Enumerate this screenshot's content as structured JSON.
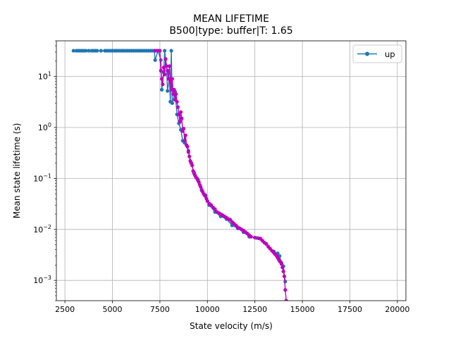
{
  "chart_data": {
    "type": "line",
    "title": "MEAN LIFETIME",
    "subtitle": "B500|type: buffer|T: 1.65",
    "xlabel": "State velocity (m/s)",
    "ylabel": "Mean state lifetime (s)",
    "xscale": "linear",
    "yscale": "log",
    "xlim": [
      2050,
      20450
    ],
    "ylim": [
      0.0004,
      50
    ],
    "xticks": [
      2500,
      5000,
      7500,
      10000,
      12500,
      15000,
      17500,
      20000
    ],
    "xtick_labels": [
      "2500",
      "5000",
      "7500",
      "10000",
      "12500",
      "15000",
      "17500",
      "20000"
    ],
    "yticks": [
      0.001,
      0.01,
      0.1,
      1,
      10
    ],
    "ytick_labels": [
      {
        "base": "10",
        "exp": "−3"
      },
      {
        "base": "10",
        "exp": "−2"
      },
      {
        "base": "10",
        "exp": "−1"
      },
      {
        "base": "10",
        "exp": "0"
      },
      {
        "base": "10",
        "exp": "1"
      }
    ],
    "grid": true,
    "legend": {
      "position": "top-right",
      "entries": [
        "up"
      ]
    },
    "series": [
      {
        "name": "up",
        "color": "#1f77b4",
        "points": [
          [
            2950,
            32
          ],
          [
            3100,
            32
          ],
          [
            3200,
            32
          ],
          [
            3300,
            32
          ],
          [
            3400,
            32
          ],
          [
            3500,
            32
          ],
          [
            3600,
            32
          ],
          [
            3750,
            32
          ],
          [
            3900,
            32
          ],
          [
            4000,
            32
          ],
          [
            4100,
            32
          ],
          [
            4200,
            32
          ],
          [
            4400,
            32
          ],
          [
            4600,
            32
          ],
          [
            4700,
            32
          ],
          [
            4800,
            32
          ],
          [
            4900,
            32
          ],
          [
            5000,
            32
          ],
          [
            5100,
            32
          ],
          [
            5200,
            32
          ],
          [
            5300,
            32
          ],
          [
            5400,
            32
          ],
          [
            5500,
            32
          ],
          [
            5600,
            32
          ],
          [
            5700,
            32
          ],
          [
            5800,
            32
          ],
          [
            5900,
            32
          ],
          [
            6000,
            32
          ],
          [
            6100,
            32
          ],
          [
            6200,
            32
          ],
          [
            6300,
            32
          ],
          [
            6400,
            32
          ],
          [
            6500,
            32
          ],
          [
            6600,
            32
          ],
          [
            6700,
            32
          ],
          [
            6800,
            32
          ],
          [
            6900,
            32
          ],
          [
            7000,
            32
          ],
          [
            7100,
            32
          ],
          [
            7200,
            32
          ],
          [
            7250,
            21
          ],
          [
            7400,
            32
          ],
          [
            7550,
            21
          ],
          [
            7600,
            5.5
          ],
          [
            7700,
            12
          ],
          [
            7750,
            32
          ],
          [
            7800,
            22
          ],
          [
            7850,
            16
          ],
          [
            7900,
            5.2
          ],
          [
            8000,
            9
          ],
          [
            8050,
            3.2
          ],
          [
            8100,
            32
          ],
          [
            8150,
            3.0
          ],
          [
            8300,
            5
          ],
          [
            8400,
            1.8
          ],
          [
            8500,
            1.2
          ],
          [
            8600,
            0.9
          ],
          [
            8700,
            0.55
          ],
          [
            8800,
            0.5
          ],
          [
            9000,
            0.35
          ],
          [
            9150,
            0.2
          ],
          [
            9300,
            0.13
          ],
          [
            9500,
            0.095
          ],
          [
            9700,
            0.058
          ],
          [
            9900,
            0.047
          ],
          [
            10100,
            0.03
          ],
          [
            10400,
            0.022
          ],
          [
            10700,
            0.018
          ],
          [
            11000,
            0.016
          ],
          [
            11300,
            0.012
          ],
          [
            11600,
            0.0105
          ],
          [
            11900,
            0.0088
          ],
          [
            12200,
            0.0072
          ],
          [
            12600,
            0.0068
          ],
          [
            12800,
            0.0065
          ],
          [
            13100,
            0.0052
          ],
          [
            13300,
            0.0042
          ],
          [
            13500,
            0.0037
          ],
          [
            13600,
            0.0033
          ],
          [
            13700,
            0.0034
          ],
          [
            13800,
            0.003
          ],
          [
            13900,
            0.0022
          ],
          [
            14000,
            0.0019
          ],
          [
            14100,
            0.00095
          ]
        ]
      },
      {
        "name": "",
        "color": "#bf00bf",
        "points": [
          [
            7250,
            32
          ],
          [
            7350,
            32
          ],
          [
            7500,
            32
          ],
          [
            7550,
            13
          ],
          [
            7600,
            9
          ],
          [
            7650,
            7
          ],
          [
            7700,
            15
          ],
          [
            7750,
            11
          ],
          [
            7800,
            22
          ],
          [
            7850,
            16
          ],
          [
            7900,
            13
          ],
          [
            7950,
            9
          ],
          [
            8000,
            16
          ],
          [
            8050,
            8
          ],
          [
            8100,
            5.5
          ],
          [
            8150,
            9
          ],
          [
            8200,
            4.5
          ],
          [
            8250,
            5.5
          ],
          [
            8300,
            3.5
          ],
          [
            8350,
            4.5
          ],
          [
            8400,
            3.2
          ],
          [
            8450,
            2.5
          ],
          [
            8500,
            1.8
          ],
          [
            8550,
            1.3
          ],
          [
            8600,
            2.0
          ],
          [
            8650,
            1.5
          ],
          [
            8700,
            0.85
          ],
          [
            8750,
            0.95
          ],
          [
            8800,
            0.55
          ],
          [
            8850,
            0.7
          ],
          [
            8900,
            0.45
          ],
          [
            8950,
            0.42
          ],
          [
            9000,
            0.33
          ],
          [
            9050,
            0.27
          ],
          [
            9100,
            0.22
          ],
          [
            9150,
            0.2
          ],
          [
            9200,
            0.18
          ],
          [
            9250,
            0.14
          ],
          [
            9300,
            0.125
          ],
          [
            9350,
            0.115
          ],
          [
            9400,
            0.105
          ],
          [
            9450,
            0.1
          ],
          [
            9500,
            0.092
          ],
          [
            9550,
            0.085
          ],
          [
            9600,
            0.075
          ],
          [
            9650,
            0.068
          ],
          [
            9700,
            0.06
          ],
          [
            9750,
            0.055
          ],
          [
            9800,
            0.05
          ],
          [
            9850,
            0.047
          ],
          [
            9900,
            0.045
          ],
          [
            9950,
            0.04
          ],
          [
            10000,
            0.036
          ],
          [
            10100,
            0.032
          ],
          [
            10200,
            0.03
          ],
          [
            10300,
            0.027
          ],
          [
            10400,
            0.025
          ],
          [
            10500,
            0.022
          ],
          [
            10600,
            0.021
          ],
          [
            10700,
            0.02
          ],
          [
            10800,
            0.019
          ],
          [
            10900,
            0.018
          ],
          [
            11000,
            0.017
          ],
          [
            11100,
            0.016
          ],
          [
            11200,
            0.0155
          ],
          [
            11300,
            0.014
          ],
          [
            11400,
            0.013
          ],
          [
            11500,
            0.012
          ],
          [
            11600,
            0.011
          ],
          [
            11700,
            0.0105
          ],
          [
            11800,
            0.01
          ],
          [
            11900,
            0.0095
          ],
          [
            12000,
            0.0089
          ],
          [
            12100,
            0.0083
          ],
          [
            12200,
            0.0077
          ],
          [
            12300,
            0.0072
          ],
          [
            12500,
            0.0069
          ],
          [
            12700,
            0.0067
          ],
          [
            12800,
            0.0066
          ],
          [
            12900,
            0.006
          ],
          [
            13000,
            0.0055
          ],
          [
            13100,
            0.0052
          ],
          [
            13200,
            0.0046
          ],
          [
            13300,
            0.0042
          ],
          [
            13400,
            0.0038
          ],
          [
            13500,
            0.0035
          ],
          [
            13550,
            0.0033
          ],
          [
            13600,
            0.0032
          ],
          [
            13650,
            0.003
          ],
          [
            13700,
            0.0028
          ],
          [
            13750,
            0.0026
          ],
          [
            13800,
            0.0024
          ],
          [
            13850,
            0.0023
          ],
          [
            13900,
            0.0021
          ],
          [
            13950,
            0.0018
          ],
          [
            14000,
            0.0015
          ],
          [
            14050,
            0.0012
          ],
          [
            14100,
            0.00065
          ],
          [
            14150,
            0.0004
          ]
        ]
      }
    ]
  }
}
